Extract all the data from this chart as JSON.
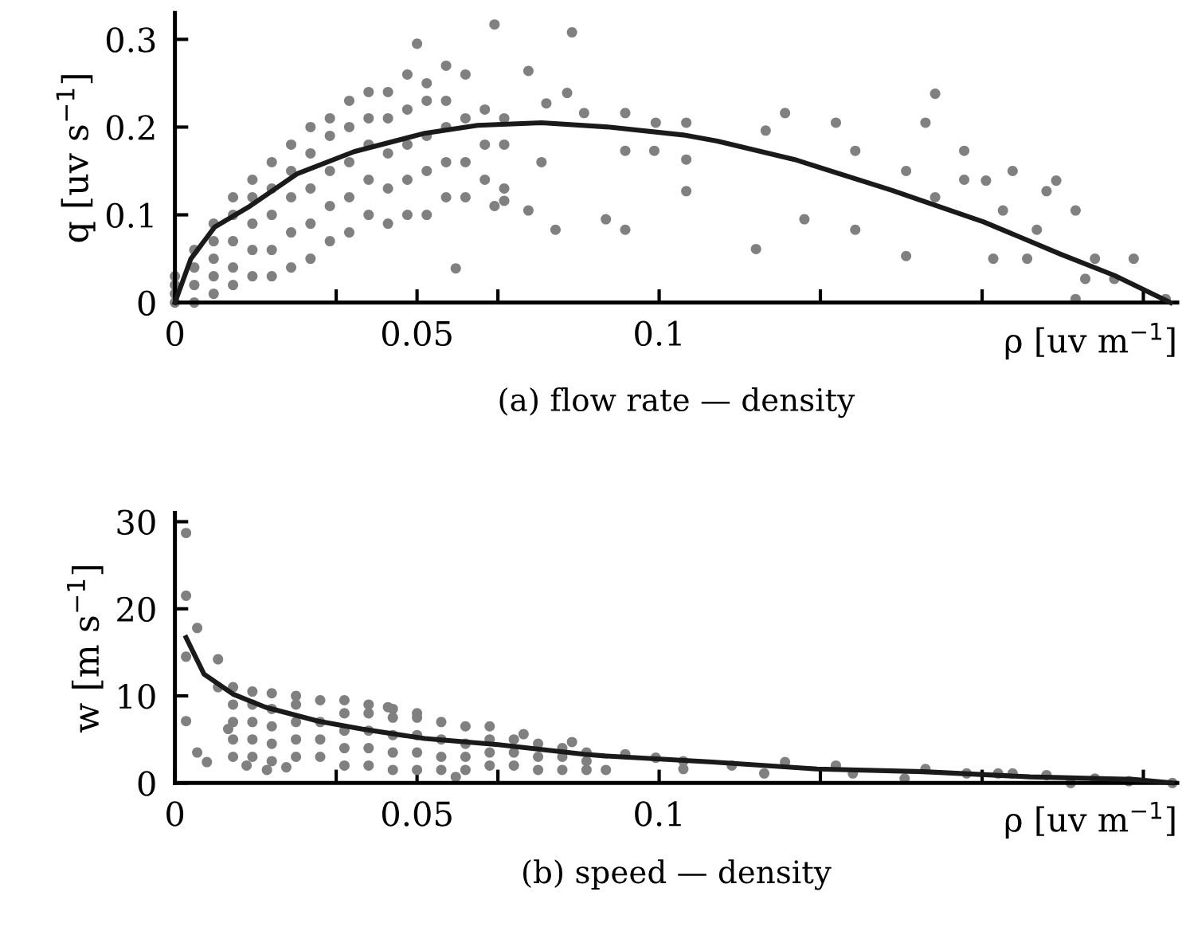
{
  "chart_data": [
    {
      "type": "scatter",
      "title": "(a) flow rate — density",
      "xlabel": "ρ [uv m$^{−1}$]",
      "ylabel": "q [uv s$^{−1}$]",
      "xlim": [
        0,
        0.207
      ],
      "ylim": [
        0,
        0.33
      ],
      "xticks": [
        0,
        {
          "value": 0.0333,
          "label": null
        },
        0.05,
        {
          "value": 0.0667,
          "label": null
        },
        0.1,
        {
          "value": 0.1333,
          "label": null
        },
        {
          "value": 0.1667,
          "label": null
        },
        {
          "value": 0.2,
          "label": null
        }
      ],
      "yticks": [
        0,
        0.1,
        0.2,
        0.3
      ],
      "grid": false,
      "legend": false,
      "series": [
        {
          "marker": "circle",
          "color": "#808080",
          "x": [
            0,
            0,
            0,
            0,
            0.004,
            0.004,
            0.004,
            0.004,
            0.008,
            0.008,
            0.008,
            0.008,
            0.008,
            0.012,
            0.012,
            0.012,
            0.012,
            0.012,
            0.016,
            0.016,
            0.016,
            0.016,
            0.016,
            0.02,
            0.02,
            0.02,
            0.02,
            0.02,
            0.024,
            0.024,
            0.024,
            0.024,
            0.024,
            0.028,
            0.028,
            0.028,
            0.028,
            0.028,
            0.032,
            0.032,
            0.032,
            0.032,
            0.032,
            0.036,
            0.036,
            0.036,
            0.036,
            0.036,
            0.04,
            0.04,
            0.04,
            0.04,
            0.04,
            0.044,
            0.044,
            0.044,
            0.044,
            0.044,
            0.048,
            0.048,
            0.048,
            0.048,
            0.048,
            0.052,
            0.052,
            0.052,
            0.052,
            0.052,
            0.056,
            0.056,
            0.056,
            0.056,
            0.056,
            0.06,
            0.06,
            0.06,
            0.06,
            0.064,
            0.064,
            0.064,
            0.068,
            0.068,
            0.068,
            0.05,
            0.066,
            0.058,
            0.082,
            0.093,
            0.093,
            0.093,
            0.099,
            0.089,
            0.0786,
            0.0845,
            0.081,
            0.0767,
            0.073,
            0.0757,
            0.073,
            0.068,
            0.066,
            0.0993,
            0.1056,
            0.1056,
            0.1056,
            0.122,
            0.126,
            0.12,
            0.13,
            0.1365,
            0.1405,
            0.1405,
            0.151,
            0.151,
            0.157,
            0.155,
            0.157,
            0.163,
            0.163,
            0.1675,
            0.171,
            0.18,
            0.182,
            0.178,
            0.186,
            0.186,
            0.188,
            0.19,
            0.194,
            0.198,
            0.2046,
            0.176,
            0.169,
            0.173
          ],
          "values": [
            0,
            0.01,
            0.02,
            0.03,
            0,
            0.02,
            0.04,
            0.06,
            0.01,
            0.03,
            0.05,
            0.07,
            0.09,
            0.02,
            0.04,
            0.07,
            0.1,
            0.12,
            0.03,
            0.06,
            0.09,
            0.12,
            0.14,
            0.03,
            0.06,
            0.1,
            0.13,
            0.16,
            0.04,
            0.08,
            0.12,
            0.15,
            0.18,
            0.05,
            0.09,
            0.13,
            0.17,
            0.2,
            0.07,
            0.11,
            0.15,
            0.19,
            0.21,
            0.08,
            0.12,
            0.16,
            0.2,
            0.23,
            0.1,
            0.14,
            0.18,
            0.21,
            0.24,
            0.09,
            0.13,
            0.17,
            0.21,
            0.24,
            0.1,
            0.14,
            0.18,
            0.22,
            0.26,
            0.1,
            0.15,
            0.19,
            0.23,
            0.25,
            0.12,
            0.16,
            0.2,
            0.23,
            0.27,
            0.12,
            0.16,
            0.21,
            0.26,
            0.14,
            0.18,
            0.22,
            0.13,
            0.18,
            0.21,
            0.295,
            0.317,
            0.039,
            0.308,
            0.216,
            0.173,
            0.083,
            0.173,
            0.095,
            0.083,
            0.216,
            0.239,
            0.227,
            0.264,
            0.16,
            0.105,
            0.116,
            0.11,
            0.205,
            0.205,
            0.163,
            0.127,
            0.196,
            0.216,
            0.061,
            0.095,
            0.205,
            0.173,
            0.083,
            0.15,
            0.053,
            0.238,
            0.205,
            0.12,
            0.173,
            0.14,
            0.139,
            0.105,
            0.127,
            0.139,
            0.083,
            0.105,
            0.004,
            0.027,
            0.05,
            0.027,
            0.05,
            0.004,
            0.05,
            0.05,
            0.15
          ]
        },
        {
          "type": "line",
          "marker": "none",
          "line_style": "solid",
          "color": "#1a1a1a",
          "x": [
            0,
            0.0033,
            0.0082,
            0.0155,
            0.0253,
            0.037,
            0.0516,
            0.0625,
            0.0757,
            0.0898,
            0.105,
            0.112,
            0.128,
            0.148,
            0.167,
            0.183,
            0.194,
            0.2056
          ],
          "values": [
            0,
            0.05,
            0.086,
            0.11,
            0.147,
            0.172,
            0.193,
            0.202,
            0.205,
            0.2,
            0.191,
            0.184,
            0.163,
            0.128,
            0.092,
            0.055,
            0.031,
            0
          ]
        }
      ]
    },
    {
      "type": "scatter",
      "title": "(b) speed — density",
      "xlabel": "ρ [uv m$^{−1}$]",
      "ylabel": "w [m s$^{−1}$]",
      "xlim": [
        0,
        0.207
      ],
      "ylim": [
        0,
        31
      ],
      "xticks": [
        0,
        {
          "value": 0.0333,
          "label": null
        },
        0.05,
        {
          "value": 0.0667,
          "label": null
        },
        0.1,
        {
          "value": 0.1333,
          "label": null
        },
        {
          "value": 0.1667,
          "label": null
        },
        {
          "value": 0.2,
          "label": null
        }
      ],
      "yticks": [
        0,
        10,
        20,
        30
      ],
      "grid": false,
      "legend": false,
      "series": [
        {
          "marker": "circle",
          "color": "#808080",
          "x": [
            0.0023,
            0.0023,
            0.0046,
            0.0023,
            0.0089,
            0.0023,
            0.0046,
            0.0066,
            0.0089,
            0.011,
            0.0148,
            0.019,
            0.023,
            0.058,
            0.05,
            0.044,
            0.072,
            0.082,
            0.012,
            0.012,
            0.012,
            0.012,
            0.012,
            0.016,
            0.016,
            0.016,
            0.016,
            0.016,
            0.02,
            0.02,
            0.02,
            0.02,
            0.02,
            0.025,
            0.025,
            0.025,
            0.025,
            0.025,
            0.03,
            0.03,
            0.03,
            0.03,
            0.035,
            0.035,
            0.035,
            0.035,
            0.035,
            0.04,
            0.04,
            0.04,
            0.04,
            0.04,
            0.045,
            0.045,
            0.045,
            0.045,
            0.045,
            0.05,
            0.05,
            0.05,
            0.05,
            0.055,
            0.055,
            0.055,
            0.055,
            0.06,
            0.06,
            0.06,
            0.06,
            0.065,
            0.065,
            0.065,
            0.065,
            0.07,
            0.07,
            0.07,
            0.075,
            0.075,
            0.075,
            0.08,
            0.08,
            0.08,
            0.085,
            0.085,
            0.085,
            0.089,
            0.093,
            0.0993,
            0.105,
            0.105,
            0.115,
            0.1217,
            0.126,
            0.1365,
            0.14,
            0.1507,
            0.155,
            0.1635,
            0.17,
            0.173,
            0.18,
            0.185,
            0.19,
            0.197,
            0.206
          ],
          "values": [
            28.7,
            21.5,
            17.8,
            14.5,
            14.2,
            7.1,
            3.5,
            2.4,
            11,
            6.2,
            2,
            1.5,
            1.8,
            0.7,
            8,
            8.7,
            5.6,
            4.7,
            3,
            5,
            7,
            9,
            11,
            3,
            5,
            7,
            9,
            10.5,
            2.5,
            4.5,
            6.5,
            8.5,
            10.3,
            3,
            5,
            7,
            9,
            10,
            3,
            5,
            7,
            9.5,
            2,
            4,
            6,
            8,
            9.5,
            2,
            4,
            6,
            8,
            9,
            1.5,
            3.5,
            5.5,
            7.5,
            8.5,
            1.5,
            3.5,
            5.5,
            7.5,
            1.5,
            3,
            5,
            7,
            1.5,
            3,
            4.5,
            6.5,
            2,
            3.5,
            5,
            6.5,
            2,
            3.5,
            5,
            1.5,
            3,
            4.5,
            1.5,
            3,
            4,
            1.5,
            2.5,
            3.5,
            1.5,
            3.3,
            2.9,
            2.5,
            1.6,
            2,
            1.1,
            2.4,
            2,
            1.1,
            0.5,
            1.6,
            1.1,
            1.1,
            1.1,
            0.9,
            0,
            0.5,
            0.2,
            0
          ]
        },
        {
          "type": "line",
          "marker": "none",
          "line_style": "solid",
          "color": "#1a1a1a",
          "x": [
            0.0023,
            0.006,
            0.012,
            0.0187,
            0.0296,
            0.0385,
            0.0516,
            0.0668,
            0.0845,
            0.0888,
            0.111,
            0.1326,
            0.1546,
            0.1766,
            0.198,
            0.206
          ],
          "values": [
            16.7,
            12.5,
            10.2,
            8.7,
            7.1,
            6.2,
            5.1,
            4.4,
            3.3,
            3.1,
            2.4,
            1.6,
            1.3,
            0.7,
            0.4,
            0
          ]
        }
      ]
    }
  ]
}
